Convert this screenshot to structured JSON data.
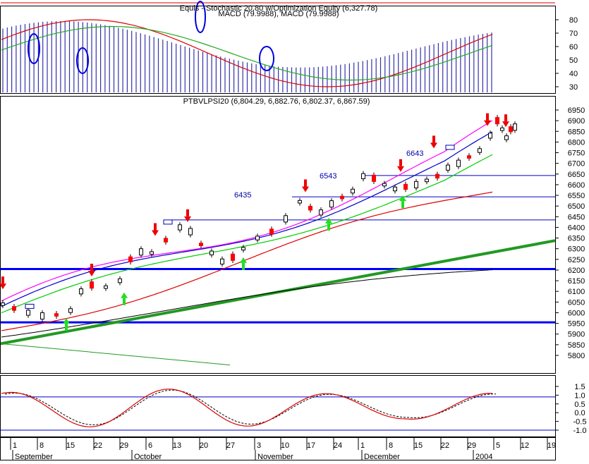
{
  "colors": {
    "background": "#ffffff",
    "frame": "#000000",
    "candle_up": "#ffffff",
    "candle_down": "#ff0000",
    "ma_short": "#ff00ff",
    "ma_mid": "#0000cc",
    "ma_green": "#00cc00",
    "ma_red": "#dd0000",
    "ma_black": "#000000",
    "trend_thick": "#229922",
    "trend_thin": "#229922",
    "level_blue": "#0000ff",
    "hist_bar": "#3333aa",
    "arrow_down": "#ee0000",
    "arrow_up": "#22dd22",
    "annotation_text": "#0000aa"
  },
  "chart_data": [
    {
      "type": "bar",
      "panel": "macd",
      "title": "Equis - Stochastic 20,80 w/Optimization Equity (6,327.78)",
      "subtitle": "MACD (79.9988), MACD (79.9988)",
      "ylim": [
        22,
        92
      ],
      "yticks": [
        30,
        40,
        50,
        60,
        70,
        80
      ],
      "grid": false
    },
    {
      "type": "line",
      "panel": "price",
      "title": "PTBVLPSI20 (6,804.29, 6,882.76, 6,802.37, 6,867.59)",
      "ylim": [
        5740,
        6990
      ],
      "yticks": [
        5800,
        5850,
        5900,
        5950,
        6000,
        6050,
        6100,
        6150,
        6200,
        6250,
        6300,
        6350,
        6400,
        6450,
        6500,
        6550,
        6600,
        6650,
        6700,
        6750,
        6800,
        6850,
        6900,
        6950
      ],
      "horizontal_levels": [
        5955,
        6205
      ],
      "resistance_levels": [
        6435,
        6543,
        6643
      ],
      "annotations": [
        "6435",
        "6543",
        "6643"
      ],
      "candles_approx": [
        {
          "x": "Sep 1",
          "open": 6040,
          "close": 6020
        },
        {
          "x": "Sep 8",
          "open": 6000,
          "close": 5980
        },
        {
          "x": "Sep 15",
          "open": 5990,
          "close": 6000
        },
        {
          "x": "Sep 19",
          "open": 6120,
          "close": 6100
        },
        {
          "x": "Sep 26",
          "open": 6110,
          "close": 6230
        },
        {
          "x": "Oct 3",
          "open": 6255,
          "close": 6280
        },
        {
          "x": "Oct 13",
          "open": 6400,
          "close": 6390
        },
        {
          "x": "Oct 20",
          "open": 6320,
          "close": 6250
        },
        {
          "x": "Oct 27",
          "open": 6245,
          "close": 6270
        },
        {
          "x": "Nov 3",
          "open": 6330,
          "close": 6360
        },
        {
          "x": "Nov 10",
          "open": 6450,
          "close": 6500
        },
        {
          "x": "Nov 17",
          "open": 6520,
          "close": 6480
        },
        {
          "x": "Nov 24",
          "open": 6500,
          "close": 6560
        },
        {
          "x": "Dec 1",
          "open": 6620,
          "close": 6640
        },
        {
          "x": "Dec 8",
          "open": 6600,
          "close": 6570
        },
        {
          "x": "Dec 15",
          "open": 6600,
          "close": 6620
        },
        {
          "x": "Dec 22",
          "open": 6640,
          "close": 6700
        },
        {
          "x": "Dec 29",
          "open": 6760,
          "close": 6900
        },
        {
          "x": "Jan 5",
          "open": 6804.29,
          "close": 6867.59
        }
      ],
      "grid": false
    },
    {
      "type": "line",
      "panel": "oscillator",
      "ylim": [
        -1.2,
        1.7
      ],
      "yticks": [
        -1.0,
        -0.5,
        0.0,
        0.5,
        1.0,
        1.5
      ],
      "horizontal_levels": [
        0.9,
        -1.0
      ],
      "grid": false
    }
  ],
  "x_axis": {
    "day_ticks": [
      "1",
      "8",
      "15",
      "22",
      "29",
      "6",
      "13",
      "20",
      "27",
      "3",
      "10",
      "17",
      "24",
      "1",
      "8",
      "15",
      "22",
      "29",
      "5",
      "12",
      "19"
    ],
    "months": [
      "September",
      "October",
      "November",
      "December",
      "2004"
    ]
  },
  "panel_labels": {
    "macd_title": "Equis - Stochastic 20,80 w/Optimization Equity (6,327.78)",
    "macd_sub": "MACD (79.9988), MACD (79.9988)",
    "price_title": "PTBVLPSI20 (6,804.29, 6,882.76, 6,802.37, 6,867.59)",
    "level_6435": "6435",
    "level_6543": "6543",
    "level_6643": "6643"
  }
}
